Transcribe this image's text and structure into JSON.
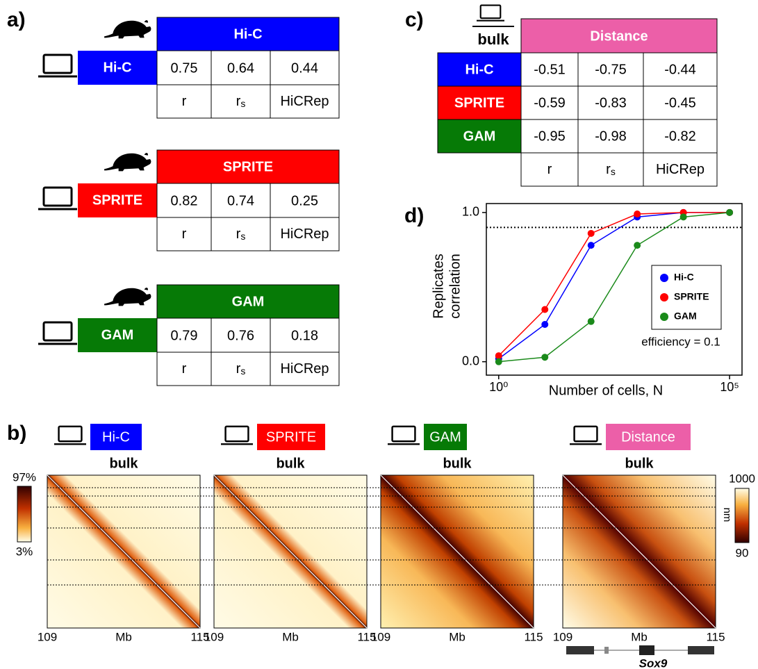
{
  "panel_labels": {
    "a": "a)",
    "b": "b)",
    "c": "c)",
    "d": "d)"
  },
  "panel_a": {
    "tables": [
      {
        "header": "Hi-C",
        "color": "#0000ff",
        "row_label": "Hi-C",
        "values": [
          0.75,
          0.64,
          0.44
        ]
      },
      {
        "header": "SPRITE",
        "color": "#ff0000",
        "row_label": "SPRITE",
        "values": [
          0.82,
          0.74,
          0.25
        ]
      },
      {
        "header": "GAM",
        "color": "#067a06",
        "row_label": "GAM",
        "values": [
          0.79,
          0.76,
          0.18
        ]
      }
    ],
    "metrics": [
      {
        "text": "r"
      },
      {
        "text": "r",
        "sub": "s"
      },
      {
        "text": "HiCRep"
      }
    ]
  },
  "panel_c": {
    "icon_label": "bulk",
    "header": "Distance",
    "header_color": "#ec5fa8",
    "rows": [
      {
        "label": "Hi-C",
        "color": "#0000ff",
        "values": [
          -0.51,
          -0.75,
          -0.44
        ]
      },
      {
        "label": "SPRITE",
        "color": "#ff0000",
        "values": [
          -0.59,
          -0.83,
          -0.45
        ]
      },
      {
        "label": "GAM",
        "color": "#067a06",
        "values": [
          -0.95,
          -0.98,
          -0.82
        ]
      }
    ],
    "metrics": [
      {
        "text": "r"
      },
      {
        "text": "r",
        "sub": "s"
      },
      {
        "text": "HiCRep"
      }
    ]
  },
  "panel_b": {
    "maps": [
      {
        "label": "Hi-C",
        "color": "#0000ff",
        "subtitle": "bulk",
        "x_start": "109",
        "x_unit": "Mb",
        "x_end": "115"
      },
      {
        "label": "SPRITE",
        "color": "#ff0000",
        "subtitle": "bulk",
        "x_start": "109",
        "x_unit": "Mb",
        "x_end": "115"
      },
      {
        "label": "GAM",
        "color": "#067a06",
        "subtitle": "bulk",
        "x_start": "109",
        "x_unit": "Mb",
        "x_end": "115"
      },
      {
        "label": "Distance",
        "color": "#ec5fa8",
        "subtitle": "bulk",
        "x_start": "109",
        "x_unit": "Mb",
        "x_end": "115"
      }
    ],
    "left_colorbar": {
      "top": "97%",
      "bottom": "3%"
    },
    "right_colorbar": {
      "top": "1000",
      "unit": "nm",
      "bottom": "90"
    },
    "gene": "Sox9"
  },
  "chart_data": {
    "type": "line",
    "xlabel": "Number of cells, N",
    "ylabel": [
      "Replicates",
      "correlation"
    ],
    "annotation": "efficiency = 0.1",
    "log_x": true,
    "x": [
      1,
      10,
      100,
      1000,
      10000,
      100000
    ],
    "series": [
      {
        "name": "Hi-C",
        "color": "#0000ff",
        "values": [
          0.02,
          0.25,
          0.78,
          0.97,
          1.0,
          1.0
        ]
      },
      {
        "name": "SPRITE",
        "color": "#ff0000",
        "values": [
          0.04,
          0.35,
          0.86,
          0.99,
          1.0,
          1.0
        ]
      },
      {
        "name": "GAM",
        "color": "#1a8a1a",
        "values": [
          0.0,
          0.03,
          0.27,
          0.78,
          0.97,
          1.0
        ]
      }
    ],
    "reference_line": 0.9,
    "xlim": [
      0.54,
      186000
    ],
    "ylim": [
      -0.09,
      1.06
    ],
    "xticks": [
      {
        "value": 1,
        "label": "10⁰"
      },
      {
        "value": 100000,
        "label": "10⁵"
      }
    ],
    "yticks": [
      {
        "value": 0,
        "label": "0.0"
      },
      {
        "value": 1,
        "label": "1.0"
      }
    ]
  }
}
